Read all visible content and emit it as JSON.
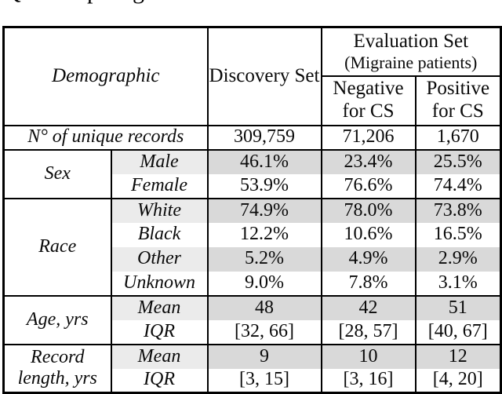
{
  "caption_fragments": {
    "q": "Q",
    "p": "p",
    "g": "g"
  },
  "colors": {
    "label_shade": "#ebebeb",
    "data_shade": "#d9d9d9",
    "border": "#000000"
  },
  "table": {
    "header": {
      "demographic": "Demographic",
      "discovery": "Discovery Set",
      "evaluation_title": "Evaluation Set",
      "evaluation_sub": "(Migraine patients)",
      "negative": "Negative for CS",
      "positive": "Positive for CS"
    },
    "unique_records": {
      "label": "N° of unique records",
      "discovery": "309,759",
      "negative": "71,206",
      "positive": "1,670"
    },
    "sections": [
      {
        "category": "Sex",
        "rows": [
          {
            "label": "Male",
            "values": [
              "46.1%",
              "23.4%",
              "25.5%"
            ]
          },
          {
            "label": "Female",
            "values": [
              "53.9%",
              "76.6%",
              "74.4%"
            ]
          }
        ]
      },
      {
        "category": "Race",
        "rows": [
          {
            "label": "White",
            "values": [
              "74.9%",
              "78.0%",
              "73.8%"
            ]
          },
          {
            "label": "Black",
            "values": [
              "12.2%",
              "10.6%",
              "16.5%"
            ]
          },
          {
            "label": "Other",
            "values": [
              "5.2%",
              "4.9%",
              "2.9%"
            ]
          },
          {
            "label": "Unknown",
            "values": [
              "9.0%",
              "7.8%",
              "3.1%"
            ]
          }
        ]
      },
      {
        "category": "Age, yrs",
        "rows": [
          {
            "label": "Mean",
            "values": [
              "48",
              "42",
              "51"
            ]
          },
          {
            "label": "IQR",
            "values": [
              "[32, 66]",
              "[28, 57]",
              "[40, 67]"
            ]
          }
        ]
      },
      {
        "category": "Record length, yrs",
        "rows": [
          {
            "label": "Mean",
            "values": [
              "9",
              "10",
              "12"
            ]
          },
          {
            "label": "IQR",
            "values": [
              "[3, 15]",
              "[3, 16]",
              "[4, 20]"
            ]
          }
        ]
      }
    ]
  }
}
